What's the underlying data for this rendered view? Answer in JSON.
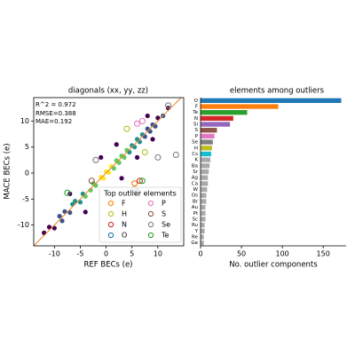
{
  "chart_data": [
    {
      "type": "scatter",
      "title": "diagonals (xx, yy, zz)",
      "x_label": "REF BECs (e)",
      "y_label": "MACE BECs (e)",
      "annotations": [
        "R^2 = 0.972",
        "RMSE=0.388",
        "MAE=0.192"
      ],
      "xlim": [
        -14,
        15
      ],
      "ylim": [
        -14,
        14.5
      ],
      "xticks": [
        -10,
        -5,
        0,
        5,
        10
      ],
      "yticks": [
        -10,
        -5,
        0,
        5,
        10
      ],
      "diagonal_color": "#e8872a",
      "colormap": [
        "#440154",
        "#3b528b",
        "#21918c",
        "#5ec962",
        "#fde725"
      ],
      "points": {
        "x": [
          -12,
          -11,
          -10,
          -9,
          -8.5,
          -8,
          -7,
          -6.5,
          -6,
          -5,
          -4.5,
          -4,
          -3,
          -2.5,
          -2,
          -1,
          -0.5,
          0,
          0.5,
          1,
          1.5,
          2,
          2.5,
          3,
          3.5,
          4,
          4.5,
          5,
          5.5,
          6,
          6.5,
          7,
          7.5,
          8,
          8.5,
          9,
          9.5,
          10,
          11,
          12,
          -7,
          -4,
          2,
          6,
          9,
          8,
          3,
          -1
        ],
        "y": [
          -11.5,
          -10.4,
          -10.6,
          -8.3,
          -9.2,
          -7.4,
          -7.6,
          -6,
          -5.4,
          -5.6,
          -4,
          -4.5,
          -3.3,
          -2,
          -2.4,
          -0.8,
          -1,
          0.3,
          0.1,
          1.3,
          0.9,
          2.4,
          2,
          3.3,
          3,
          4.4,
          4,
          5.3,
          5,
          6.5,
          6,
          7.4,
          7,
          8.5,
          8,
          9.3,
          9,
          10.6,
          11,
          12.5,
          -4,
          -7.5,
          5.5,
          3,
          6.5,
          11,
          -1,
          3
        ]
      },
      "legend_title": "Top outlier elements",
      "series": [
        {
          "name": "F",
          "color": "#ff7f0e",
          "x": [
            5.5,
            6
          ],
          "y": [
            -2,
            -3.5
          ]
        },
        {
          "name": "H",
          "color": "#bcbd22",
          "x": [
            7.5,
            4
          ],
          "y": [
            4,
            8.5
          ]
        },
        {
          "name": "N",
          "color": "#d62728",
          "x": [
            6.5
          ],
          "y": [
            -1.5
          ]
        },
        {
          "name": "O",
          "color": "#1f77b4",
          "x": [
            5.5,
            6
          ],
          "y": [
            -3.2,
            -3.8
          ]
        },
        {
          "name": "P",
          "color": "#e377c2",
          "x": [
            6,
            7
          ],
          "y": [
            9.5,
            10
          ]
        },
        {
          "name": "S",
          "color": "#8c564b",
          "x": [
            -2.8
          ],
          "y": [
            -1.5
          ]
        },
        {
          "name": "Se",
          "color": "#7f7f7f",
          "x": [
            12,
            10,
            13.5,
            -2
          ],
          "y": [
            13,
            3,
            3.5,
            2.5
          ]
        },
        {
          "name": "Te",
          "color": "#2ca02c",
          "x": [
            -7.5,
            7
          ],
          "y": [
            -3.8,
            -1.5
          ]
        }
      ]
    },
    {
      "type": "barh",
      "title": "elements among outliers",
      "x_label": "No. outlier components",
      "categories": [
        "O",
        "F",
        "Te",
        "N",
        "Si",
        "S",
        "P",
        "Se",
        "H",
        "Cs",
        "K",
        "Ba",
        "Sr",
        "Ag",
        "Ca",
        "W",
        "Os",
        "Br",
        "Au",
        "Pt",
        "Sc",
        "Ru",
        "Y",
        "Re",
        "Ge"
      ],
      "values": [
        172,
        95,
        57,
        40,
        36,
        20,
        17,
        15,
        14,
        13,
        12,
        11,
        10,
        9,
        9,
        8,
        7,
        7,
        6,
        6,
        6,
        5,
        5,
        4,
        4
      ],
      "colors": [
        "#1f77b4",
        "#ff7f0e",
        "#2ca02c",
        "#d62728",
        "#9467bd",
        "#8c564b",
        "#e377c2",
        "#7f7f7f",
        "#bcbd22",
        "#17becf",
        "#aaaaaa",
        "#aaaaaa",
        "#aaaaaa",
        "#aaaaaa",
        "#aaaaaa",
        "#aaaaaa",
        "#aaaaaa",
        "#aaaaaa",
        "#aaaaaa",
        "#aaaaaa",
        "#aaaaaa",
        "#aaaaaa",
        "#aaaaaa",
        "#aaaaaa",
        "#aaaaaa"
      ],
      "xlim": [
        0,
        178
      ],
      "xticks": [
        0,
        50,
        100,
        150
      ]
    }
  ]
}
